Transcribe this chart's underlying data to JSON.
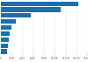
{
  "values": [
    14400,
    11100,
    5600,
    2700,
    1900,
    1600,
    1400,
    1300,
    1200
  ],
  "bar_color": "#1a6faf",
  "background_color": "#ffffff",
  "xlim": [
    0,
    16000
  ],
  "bar_height": 0.75,
  "figsize": [
    1.0,
    0.71
  ],
  "dpi": 100,
  "xticks": [
    0,
    2000,
    4000,
    6000,
    8000,
    10000,
    12000,
    14000,
    16000
  ],
  "xtick_labels": [
    "0",
    "2,000",
    "4,000",
    "6,000",
    "8,000",
    "10,000",
    "12,000",
    "14,000",
    "16,000"
  ]
}
